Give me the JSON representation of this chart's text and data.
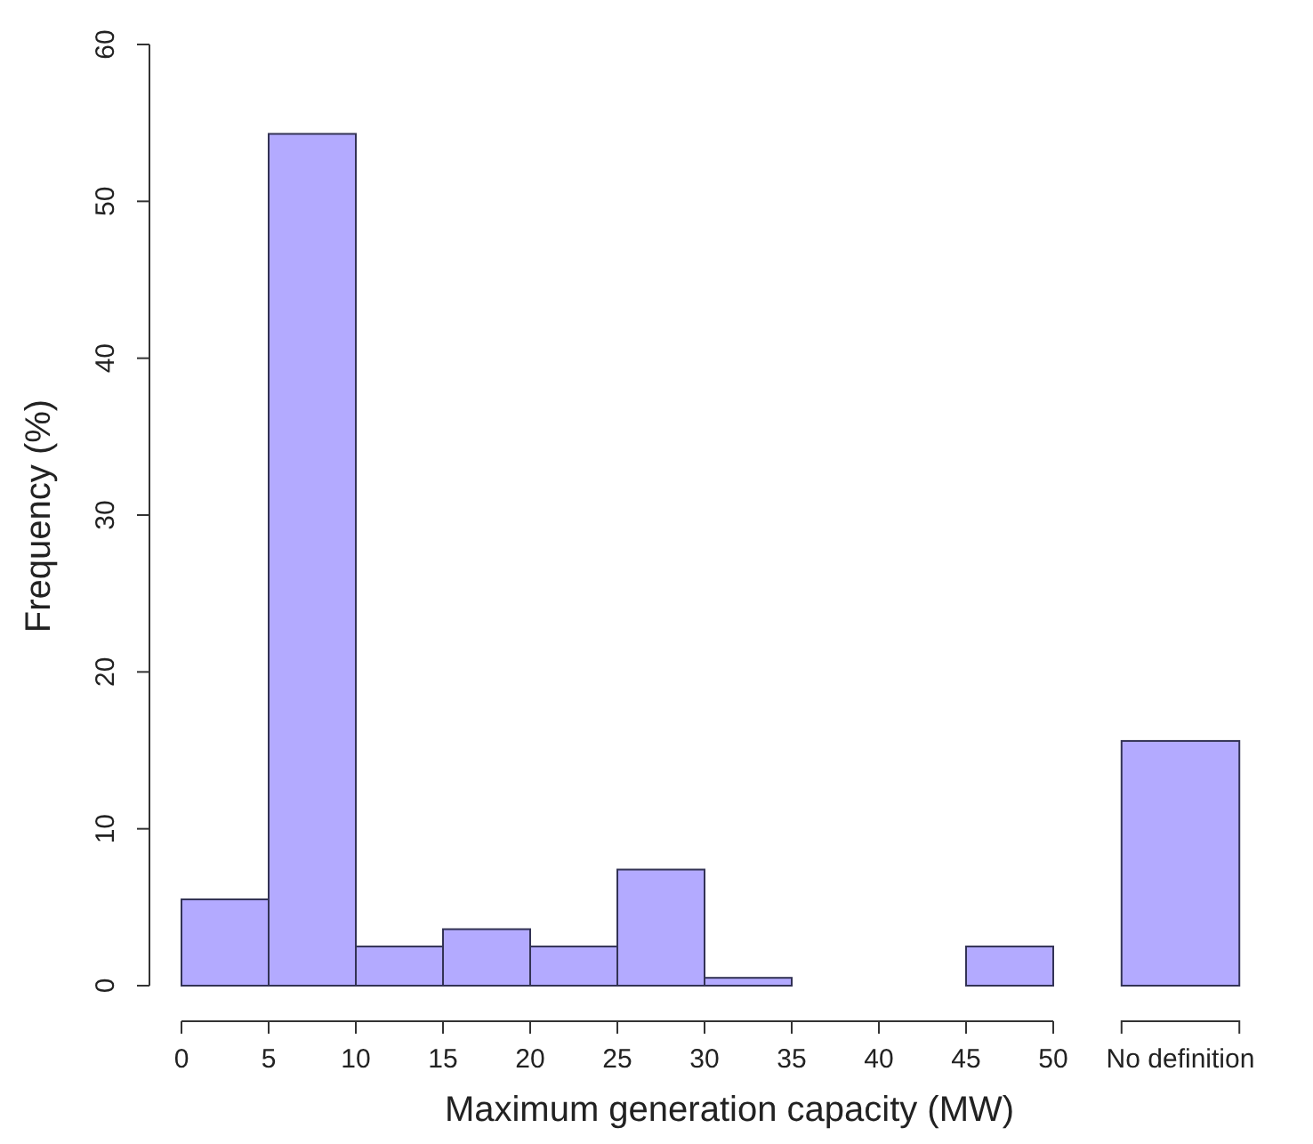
{
  "chart_data": [
    {
      "type": "histogram",
      "xlabel": "Maximum generation capacity (MW)",
      "ylabel": "Frequency (%)",
      "bins": [
        0,
        5,
        10,
        15,
        20,
        25,
        30,
        35,
        40,
        45,
        50
      ],
      "values": [
        5.5,
        54.3,
        2.5,
        3.6,
        2.5,
        7.4,
        0.5,
        0,
        0,
        2.5
      ],
      "color": "#b3aaff",
      "xlim": [
        0,
        50
      ],
      "xticks": [
        0,
        5,
        10,
        15,
        20,
        25,
        30,
        35,
        40,
        45,
        50
      ],
      "ylim": [
        0,
        60
      ],
      "yticks": [
        0,
        10,
        20,
        30,
        40,
        50,
        60
      ],
      "grid": false
    },
    {
      "type": "bar",
      "categories": [
        "No definition"
      ],
      "values": [
        15.6
      ],
      "color": "#b3aaff",
      "ylim": [
        0,
        60
      ],
      "tick_labels": "x"
    }
  ]
}
